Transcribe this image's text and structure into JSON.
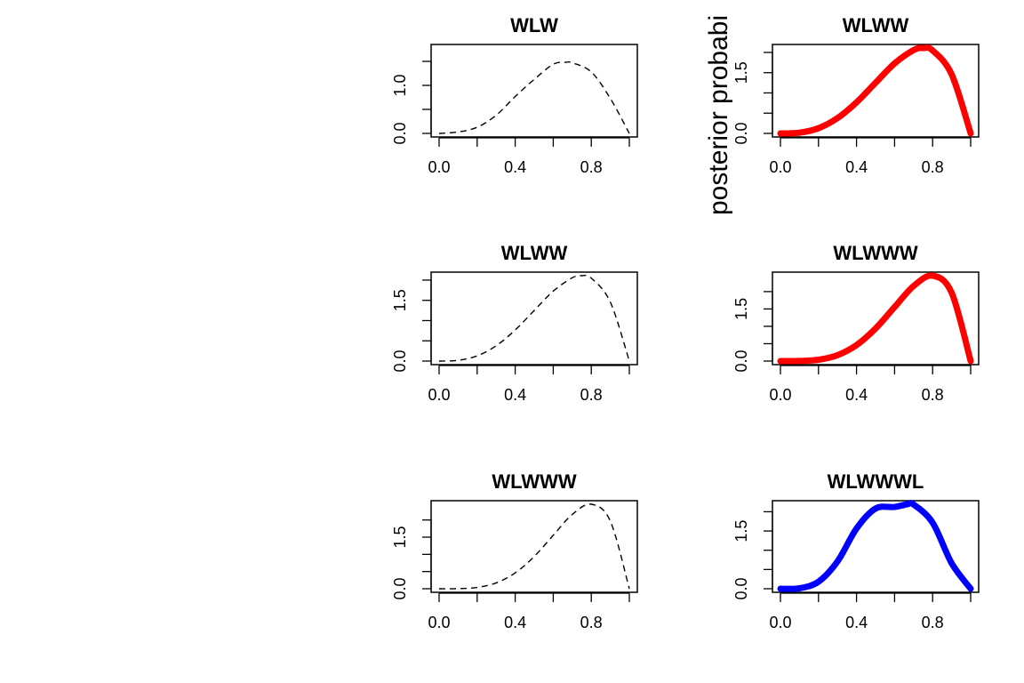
{
  "figure": {
    "stray_text": "posterior probabi"
  },
  "chart_data": [
    {
      "type": "line",
      "title": "WLW",
      "line_style": "dashed",
      "color": "#000000",
      "xlim": [
        0,
        1
      ],
      "ylim": [
        0,
        1.778
      ],
      "xticks": [
        0,
        0.2,
        0.4,
        0.6,
        0.8,
        1.0
      ],
      "xtick_labels": [
        "0.0",
        "",
        "0.4",
        "",
        "0.8",
        ""
      ],
      "yticks": [
        0,
        0.5,
        1.0,
        1.5
      ],
      "ytick_labels": [
        "0.0",
        "",
        "1.0",
        ""
      ],
      "series": [
        {
          "x": [
            0,
            0.1,
            0.2,
            0.3,
            0.4,
            0.5,
            0.6,
            0.667,
            0.7,
            0.8,
            0.9,
            1.0
          ],
          "y": [
            0,
            0.03,
            0.128,
            0.378,
            0.768,
            1.125,
            1.44,
            1.481,
            1.47,
            1.28,
            0.729,
            0
          ]
        }
      ]
    },
    {
      "type": "line",
      "title": "WLWW",
      "line_style": "solid-thick",
      "color": "#ff0000",
      "xlim": [
        0,
        1
      ],
      "ylim": [
        0,
        2.109
      ],
      "xticks": [
        0,
        0.2,
        0.4,
        0.6,
        0.8,
        1.0
      ],
      "xtick_labels": [
        "0.0",
        "",
        "0.4",
        "",
        "0.8",
        ""
      ],
      "yticks": [
        0,
        0.5,
        1.0,
        1.5,
        2.0
      ],
      "ytick_labels": [
        "0.0",
        "",
        "",
        "1.5",
        ""
      ],
      "series": [
        {
          "x": [
            0,
            0.1,
            0.2,
            0.3,
            0.4,
            0.5,
            0.6,
            0.7,
            0.75,
            0.8,
            0.9,
            1.0
          ],
          "y": [
            0,
            0.018,
            0.128,
            0.378,
            0.768,
            1.25,
            1.728,
            2.058,
            2.109,
            2.048,
            1.458,
            0
          ]
        }
      ]
    },
    {
      "type": "line",
      "title": "WLWW",
      "line_style": "dashed",
      "color": "#000000",
      "xlim": [
        0,
        1
      ],
      "ylim": [
        0,
        2.109
      ],
      "xticks": [
        0,
        0.2,
        0.4,
        0.6,
        0.8,
        1.0
      ],
      "xtick_labels": [
        "0.0",
        "",
        "0.4",
        "",
        "0.8",
        ""
      ],
      "yticks": [
        0,
        0.5,
        1.0,
        1.5,
        2.0
      ],
      "ytick_labels": [
        "0.0",
        "",
        "",
        "1.5",
        ""
      ],
      "series": [
        {
          "x": [
            0,
            0.1,
            0.2,
            0.3,
            0.4,
            0.5,
            0.6,
            0.7,
            0.75,
            0.8,
            0.9,
            1.0
          ],
          "y": [
            0,
            0.018,
            0.128,
            0.378,
            0.768,
            1.25,
            1.728,
            2.058,
            2.109,
            2.048,
            1.458,
            0
          ]
        }
      ]
    },
    {
      "type": "line",
      "title": "WLWWW",
      "line_style": "solid-thick",
      "color": "#ff0000",
      "xlim": [
        0,
        1
      ],
      "ylim": [
        0,
        2.458
      ],
      "xticks": [
        0,
        0.2,
        0.4,
        0.6,
        0.8,
        1.0
      ],
      "xtick_labels": [
        "0.0",
        "",
        "0.4",
        "",
        "0.8",
        ""
      ],
      "yticks": [
        0,
        0.5,
        1.0,
        1.5,
        2.0
      ],
      "ytick_labels": [
        "0.0",
        "",
        "",
        "1.5",
        ""
      ],
      "series": [
        {
          "x": [
            0,
            0.1,
            0.2,
            0.3,
            0.4,
            0.5,
            0.6,
            0.7,
            0.8,
            0.9,
            1.0
          ],
          "y": [
            0,
            0.002,
            0.038,
            0.17,
            0.461,
            0.938,
            1.555,
            2.161,
            2.458,
            1.968,
            0
          ]
        }
      ]
    },
    {
      "type": "line",
      "title": "WLWWW",
      "line_style": "dashed",
      "color": "#000000",
      "xlim": [
        0,
        1
      ],
      "ylim": [
        0,
        2.458
      ],
      "xticks": [
        0,
        0.2,
        0.4,
        0.6,
        0.8,
        1.0
      ],
      "xtick_labels": [
        "0.0",
        "",
        "0.4",
        "",
        "0.8",
        ""
      ],
      "yticks": [
        0,
        0.5,
        1.0,
        1.5,
        2.0
      ],
      "ytick_labels": [
        "0.0",
        "",
        "",
        "1.5",
        ""
      ],
      "series": [
        {
          "x": [
            0,
            0.1,
            0.2,
            0.3,
            0.4,
            0.5,
            0.6,
            0.7,
            0.8,
            0.9,
            1.0
          ],
          "y": [
            0,
            0.002,
            0.038,
            0.17,
            0.461,
            0.938,
            1.555,
            2.161,
            2.458,
            1.968,
            0
          ]
        }
      ]
    },
    {
      "type": "line",
      "title": "WLWWWL",
      "line_style": "solid-thick",
      "color": "#0000ff",
      "xlim": [
        0,
        1
      ],
      "ylim": [
        0,
        2.195
      ],
      "xticks": [
        0,
        0.2,
        0.4,
        0.6,
        0.8,
        1.0
      ],
      "xtick_labels": [
        "0.0",
        "",
        "0.4",
        "",
        "0.8",
        ""
      ],
      "yticks": [
        0,
        0.5,
        1.0,
        1.5,
        2.0
      ],
      "ytick_labels": [
        "0.0",
        "",
        "",
        "1.5",
        ""
      ],
      "series": [
        {
          "x": [
            0,
            0.1,
            0.2,
            0.3,
            0.4,
            0.5,
            0.6,
            0.667,
            0.7,
            0.8,
            0.9,
            1.0
          ],
          "y": [
            0,
            0.013,
            0.183,
            0.711,
            1.565,
            2.084,
            2.124,
            2.195,
            2.188,
            1.716,
            0.663,
            0
          ]
        }
      ]
    }
  ]
}
